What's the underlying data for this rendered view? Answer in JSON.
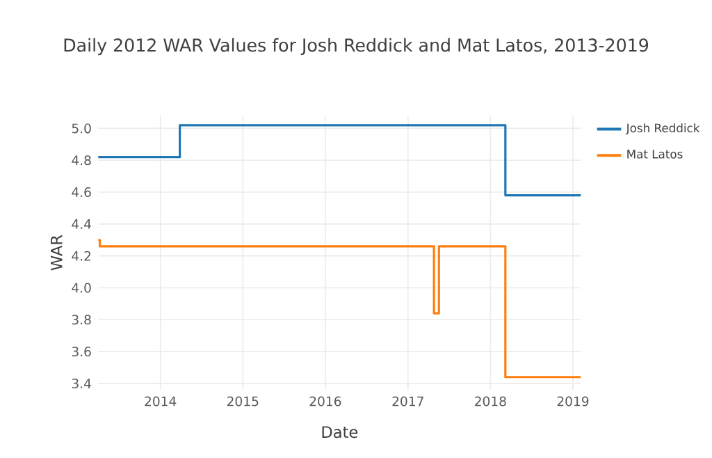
{
  "chart_data": {
    "type": "step",
    "title": "Daily 2012 WAR Values for Josh Reddick and Mat Latos, 2013-2019",
    "xlabel": "Date",
    "ylabel": "WAR",
    "series": [
      {
        "name": "Josh Reddick",
        "color": "#1f77b4",
        "x": [
          "2013-04-01",
          "2014-03-28",
          "2018-03-08",
          "2019-02-05"
        ],
        "values": [
          4.82,
          5.02,
          4.58,
          4.58
        ]
      },
      {
        "name": "Mat Latos",
        "color": "#ff7f0e",
        "x": [
          "2013-04-01",
          "2013-04-08",
          "2017-04-26",
          "2017-05-18",
          "2018-03-08",
          "2019-02-05"
        ],
        "values": [
          4.3,
          4.26,
          3.84,
          4.26,
          3.44,
          3.44
        ]
      }
    ],
    "xlim": [
      "2013-04-01",
      "2019-02-05"
    ],
    "ylim": [
      3.36,
      5.08
    ],
    "xticks": [
      "2014",
      "2015",
      "2016",
      "2017",
      "2018",
      "2019"
    ],
    "yticks": [
      3.4,
      3.6,
      3.8,
      {
        "value": 4.0,
        "label": "4.0"
      },
      4.2,
      4.4,
      4.6,
      4.8,
      {
        "value": 5.0,
        "label": "5.0"
      }
    ],
    "grid": true,
    "legend": "top right",
    "marker": "none",
    "line_style": "solid"
  }
}
